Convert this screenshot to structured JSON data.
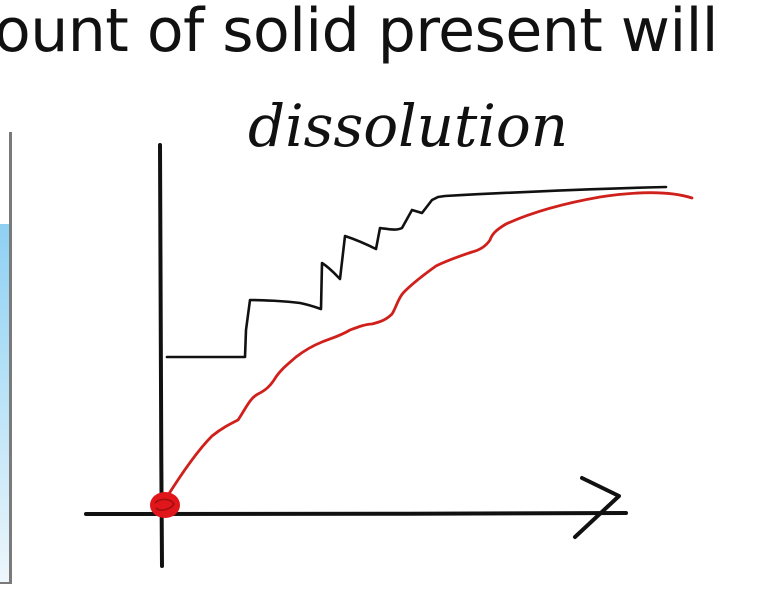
{
  "slide": {
    "heading": "ount of solid present will",
    "annotation": "dissolution"
  },
  "colors": {
    "ink": "#111111",
    "curve": "#d0201c",
    "dot": "#e0161a",
    "liquid": "#8fd0f3"
  }
}
